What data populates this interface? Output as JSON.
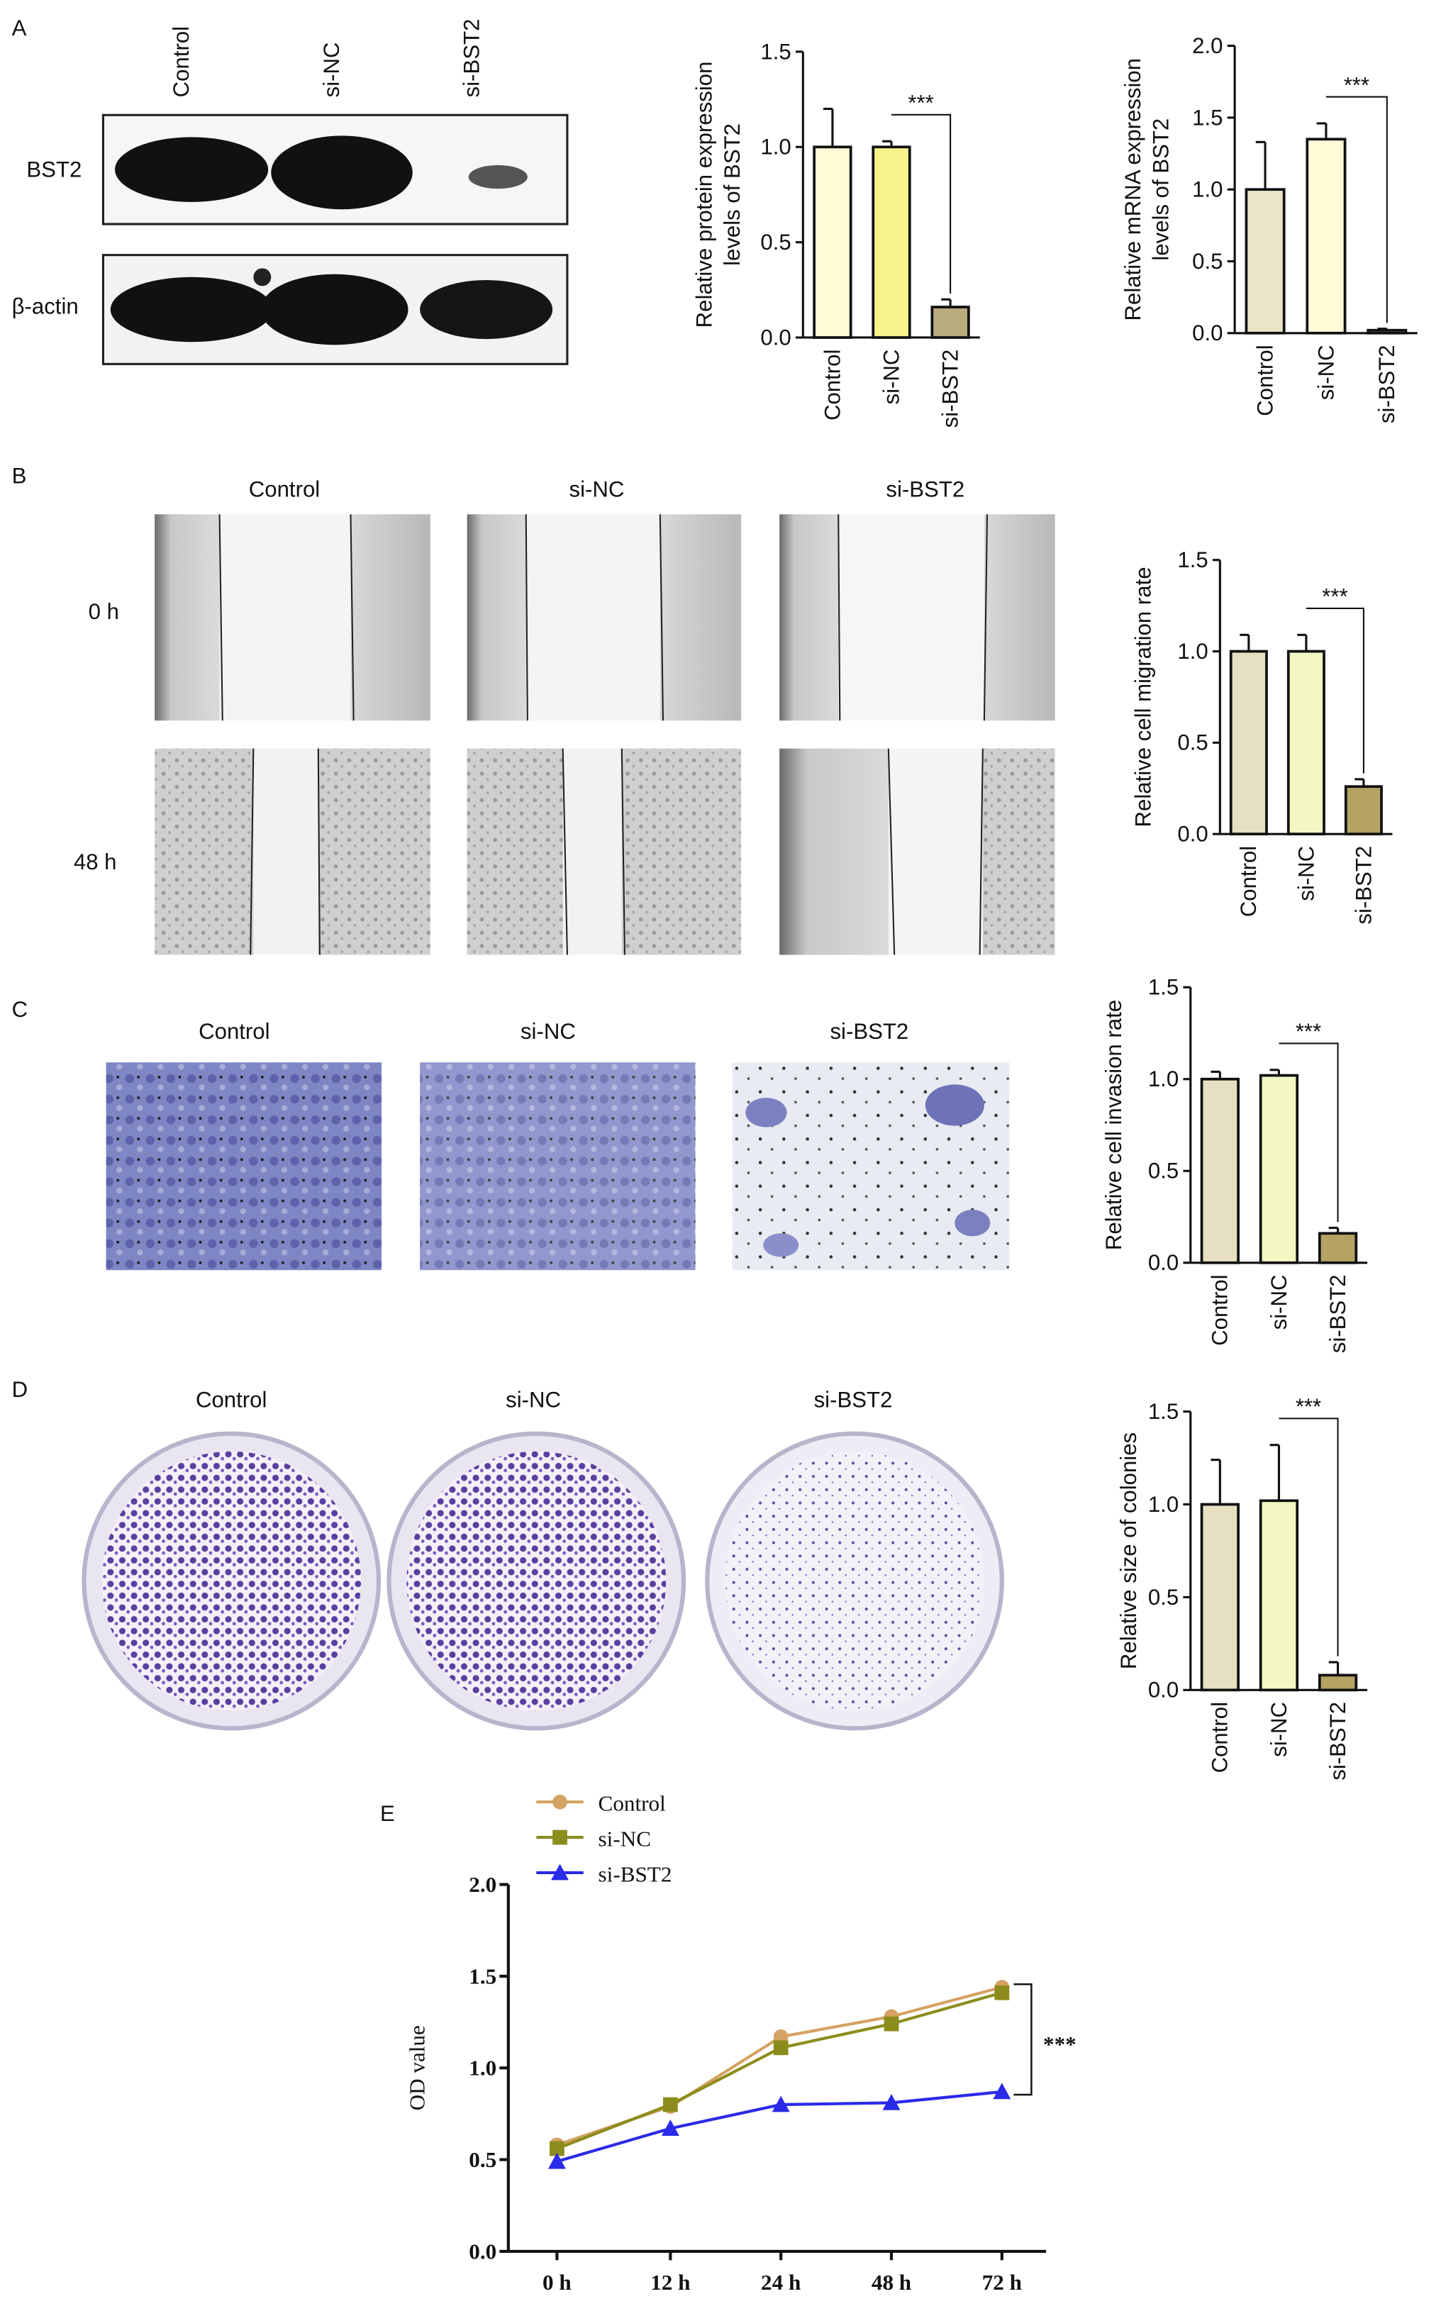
{
  "figure": {
    "panel_labels": [
      "A",
      "B",
      "C",
      "D",
      "E"
    ],
    "blot": {
      "lanes": [
        "Control",
        "si-NC",
        "si-BST2"
      ],
      "rows": [
        "BST2",
        "β-actin"
      ]
    },
    "wound": {
      "columns": [
        "Control",
        "si-NC",
        "si-BST2"
      ],
      "rows": [
        "0 h",
        "48 h"
      ]
    },
    "invasion": {
      "columns": [
        "Control",
        "si-NC",
        "si-BST2"
      ]
    },
    "colony": {
      "columns": [
        "Control",
        "si-NC",
        "si-BST2"
      ]
    }
  },
  "chart_data": [
    {
      "type": "bar",
      "y_label": [
        "Relative protein expression",
        "levels of BST2"
      ],
      "categories": [
        "Control",
        "si-NC",
        "si-BST2"
      ],
      "values": [
        1.0,
        1.0,
        0.16
      ],
      "errors": [
        0.2,
        0.03,
        0.04
      ],
      "colors": [
        "#fffbd6",
        "#f6f38a",
        "#b9ab7b"
      ],
      "ylim": [
        0,
        1.5
      ],
      "yticks": [
        {
          "value": 0,
          "label": "0.0"
        },
        0.5,
        {
          "value": 1,
          "label": "1.0"
        },
        1.5
      ],
      "annotation": "***"
    },
    {
      "type": "bar",
      "y_label": [
        "Relative mRNA expression",
        "levels of BST2"
      ],
      "categories": [
        "Control",
        "si-NC",
        "si-BST2"
      ],
      "values": [
        1.0,
        1.35,
        0.02
      ],
      "errors": [
        0.33,
        0.11,
        0.01
      ],
      "colors": [
        "#ebe4c8",
        "#fffbd6",
        "#b9ab7b"
      ],
      "ylim": [
        0,
        2
      ],
      "yticks": [
        {
          "value": 0,
          "label": "0.0"
        },
        0.5,
        {
          "value": 1,
          "label": "1.0"
        },
        1.5,
        {
          "value": 2,
          "label": "2.0"
        }
      ],
      "annotation": "***"
    },
    {
      "type": "bar",
      "y_label": [
        "Relative cell migration rate"
      ],
      "categories": [
        "Control",
        "si-NC",
        "si-BST2"
      ],
      "values": [
        1.0,
        1.0,
        0.26
      ],
      "errors": [
        0.09,
        0.09,
        0.04
      ],
      "colors": [
        "#e6dfc2",
        "#f3f7c2",
        "#b5a363"
      ],
      "ylim": [
        0,
        1.5
      ],
      "yticks": [
        {
          "value": 0,
          "label": "0.0"
        },
        0.5,
        {
          "value": 1,
          "label": "1.0"
        },
        1.5
      ],
      "annotation": "***"
    },
    {
      "type": "bar",
      "y_label": [
        "Relative cell invasion rate"
      ],
      "categories": [
        "Control",
        "si-NC",
        "si-BST2"
      ],
      "values": [
        1.0,
        1.02,
        0.16
      ],
      "errors": [
        0.04,
        0.03,
        0.03
      ],
      "colors": [
        "#e6dfc2",
        "#f3f7c2",
        "#b5a363"
      ],
      "ylim": [
        0,
        1.5
      ],
      "yticks": [
        {
          "value": 0,
          "label": "0.0"
        },
        0.5,
        {
          "value": 1,
          "label": "1.0"
        },
        1.5
      ],
      "annotation": "***"
    },
    {
      "type": "bar",
      "y_label": [
        "Relative size of colonies"
      ],
      "categories": [
        "Control",
        "si-NC",
        "si-BST2"
      ],
      "values": [
        1.0,
        1.02,
        0.08
      ],
      "errors": [
        0.24,
        0.3,
        0.07
      ],
      "colors": [
        "#e6dfc2",
        "#f3f7c2",
        "#b5a363"
      ],
      "ylim": [
        0,
        1.5
      ],
      "yticks": [
        {
          "value": 0,
          "label": "0.0"
        },
        0.5,
        {
          "value": 1,
          "label": "1.0"
        },
        1.5
      ],
      "annotation": "***"
    },
    {
      "type": "line",
      "y_label": "OD value",
      "categories": [
        "0 h",
        "12 h",
        "24 h",
        "48 h",
        "72 h"
      ],
      "series": [
        {
          "name": "Control",
          "color": "#d4a262",
          "marker": "circle",
          "values": [
            0.58,
            0.79,
            1.17,
            1.28,
            1.44
          ]
        },
        {
          "name": "si-NC",
          "color": "#8c8c1c",
          "marker": "square",
          "values": [
            0.56,
            0.8,
            1.11,
            1.24,
            1.41
          ]
        },
        {
          "name": "si-BST2",
          "color": "#2a2ae8",
          "marker": "triangle",
          "values": [
            0.49,
            0.67,
            0.8,
            0.81,
            0.87
          ]
        }
      ],
      "ylim": [
        0,
        2
      ],
      "yticks": [
        {
          "value": 0,
          "label": "0.0"
        },
        0.5,
        {
          "value": 1,
          "label": "1.0"
        },
        1.5,
        {
          "value": 2,
          "label": "2.0"
        }
      ],
      "annotation": "***"
    }
  ]
}
